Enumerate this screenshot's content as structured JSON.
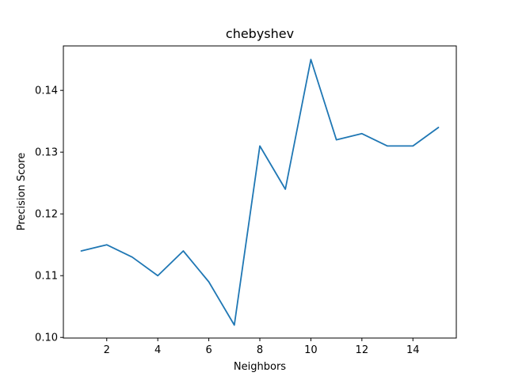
{
  "chart_data": {
    "type": "line",
    "title": "chebyshev",
    "xlabel": "Neighbors",
    "ylabel": "Precision Score",
    "x": [
      1,
      2,
      3,
      4,
      5,
      6,
      7,
      8,
      9,
      10,
      11,
      12,
      13,
      14,
      15
    ],
    "series": [
      {
        "values": [
          0.114,
          0.115,
          0.113,
          0.11,
          0.114,
          0.109,
          0.102,
          0.131,
          0.124,
          0.145,
          0.132,
          0.133,
          0.131,
          0.131,
          0.134
        ]
      }
    ],
    "xlim": [
      0.3,
      15.7
    ],
    "ylim": [
      0.0999,
      0.1472
    ],
    "xticks": [
      2,
      4,
      6,
      8,
      10,
      12,
      14
    ],
    "xtick_labels": [
      "2",
      "4",
      "6",
      "8",
      "10",
      "12",
      "14"
    ],
    "yticks": [
      0.1,
      0.11,
      0.12,
      0.13,
      0.14
    ],
    "ytick_labels": [
      "0.10",
      "0.11",
      "0.12",
      "0.13",
      "0.14"
    ],
    "grid": false,
    "line_color": "#1f77b4"
  }
}
